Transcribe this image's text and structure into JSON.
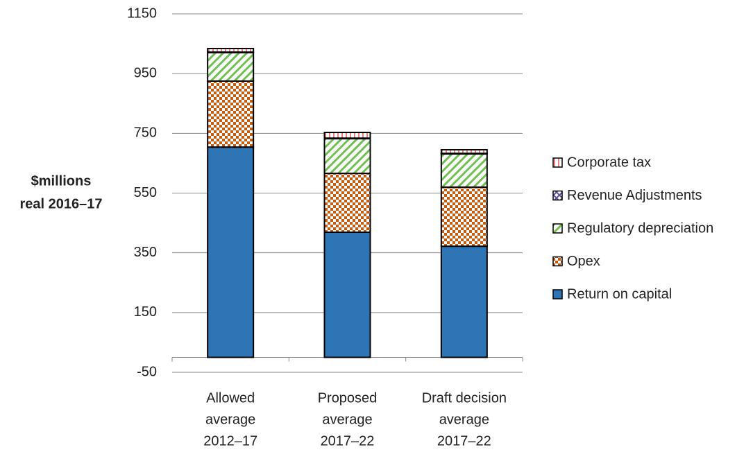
{
  "chart_data": {
    "type": "stacked_bar",
    "y_label": [
      "$millions",
      "real 2016–17"
    ],
    "categories": [
      [
        "Allowed",
        "average",
        "2012–17"
      ],
      [
        "Proposed",
        "average",
        "2017–22"
      ],
      [
        "Draft decision",
        "average",
        "2017–22"
      ]
    ],
    "series": [
      {
        "name": "Return on capital",
        "color": "#2e75b6",
        "pattern": "solid",
        "values": [
          704,
          419,
          372
        ]
      },
      {
        "name": "Opex",
        "color": "#c55a11",
        "pattern": "checker",
        "values": [
          221,
          197,
          198
        ]
      },
      {
        "name": "Regulatory depreciation",
        "color": "#70c050",
        "pattern": "diagonal",
        "values": [
          95,
          116,
          111
        ]
      },
      {
        "name": "Revenue Adjustments",
        "color": "#5b4e9a",
        "pattern": "crosshatch",
        "values": [
          2,
          2,
          2
        ]
      },
      {
        "name": "Corporate tax",
        "color": "#f08080",
        "pattern": "vertical",
        "values": [
          12,
          19,
          12
        ]
      }
    ],
    "ylim": [
      -50,
      1150
    ],
    "yticks": [
      -50,
      150,
      350,
      550,
      750,
      950,
      1150
    ],
    "grid": true,
    "legend": "right"
  }
}
